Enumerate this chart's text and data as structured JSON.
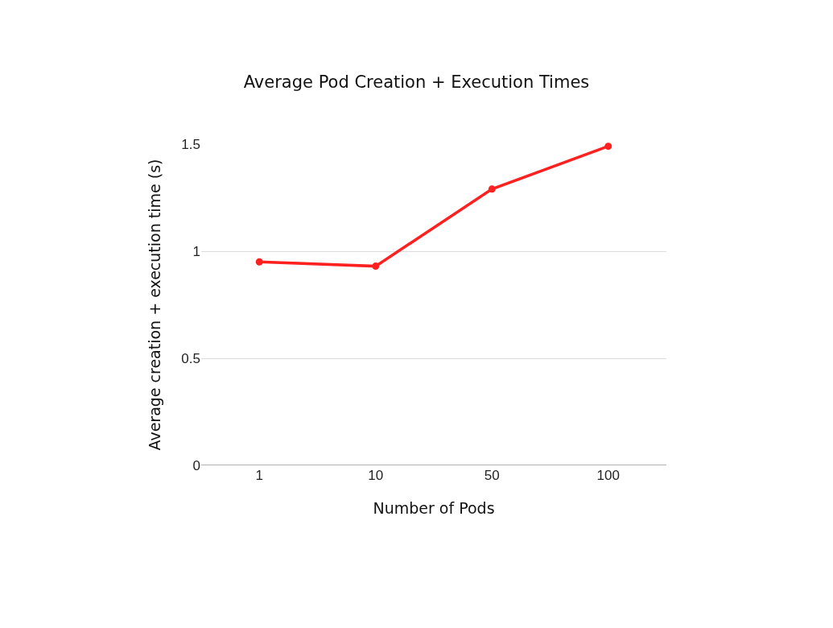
{
  "chart_data": {
    "type": "line",
    "title": "Average Pod Creation + Execution Times",
    "xlabel": "Number of Pods",
    "ylabel": "Average creation + execution time (s)",
    "categories": [
      "1",
      "10",
      "50",
      "100"
    ],
    "series": [
      {
        "color": "#ff2020",
        "values": [
          0.95,
          0.93,
          1.29,
          1.49
        ]
      }
    ],
    "ylim": [
      0,
      1.5
    ],
    "yticks": [
      0,
      0.5,
      1,
      1.5
    ],
    "grid": "y",
    "marker": "circle",
    "line_style": "solid"
  }
}
